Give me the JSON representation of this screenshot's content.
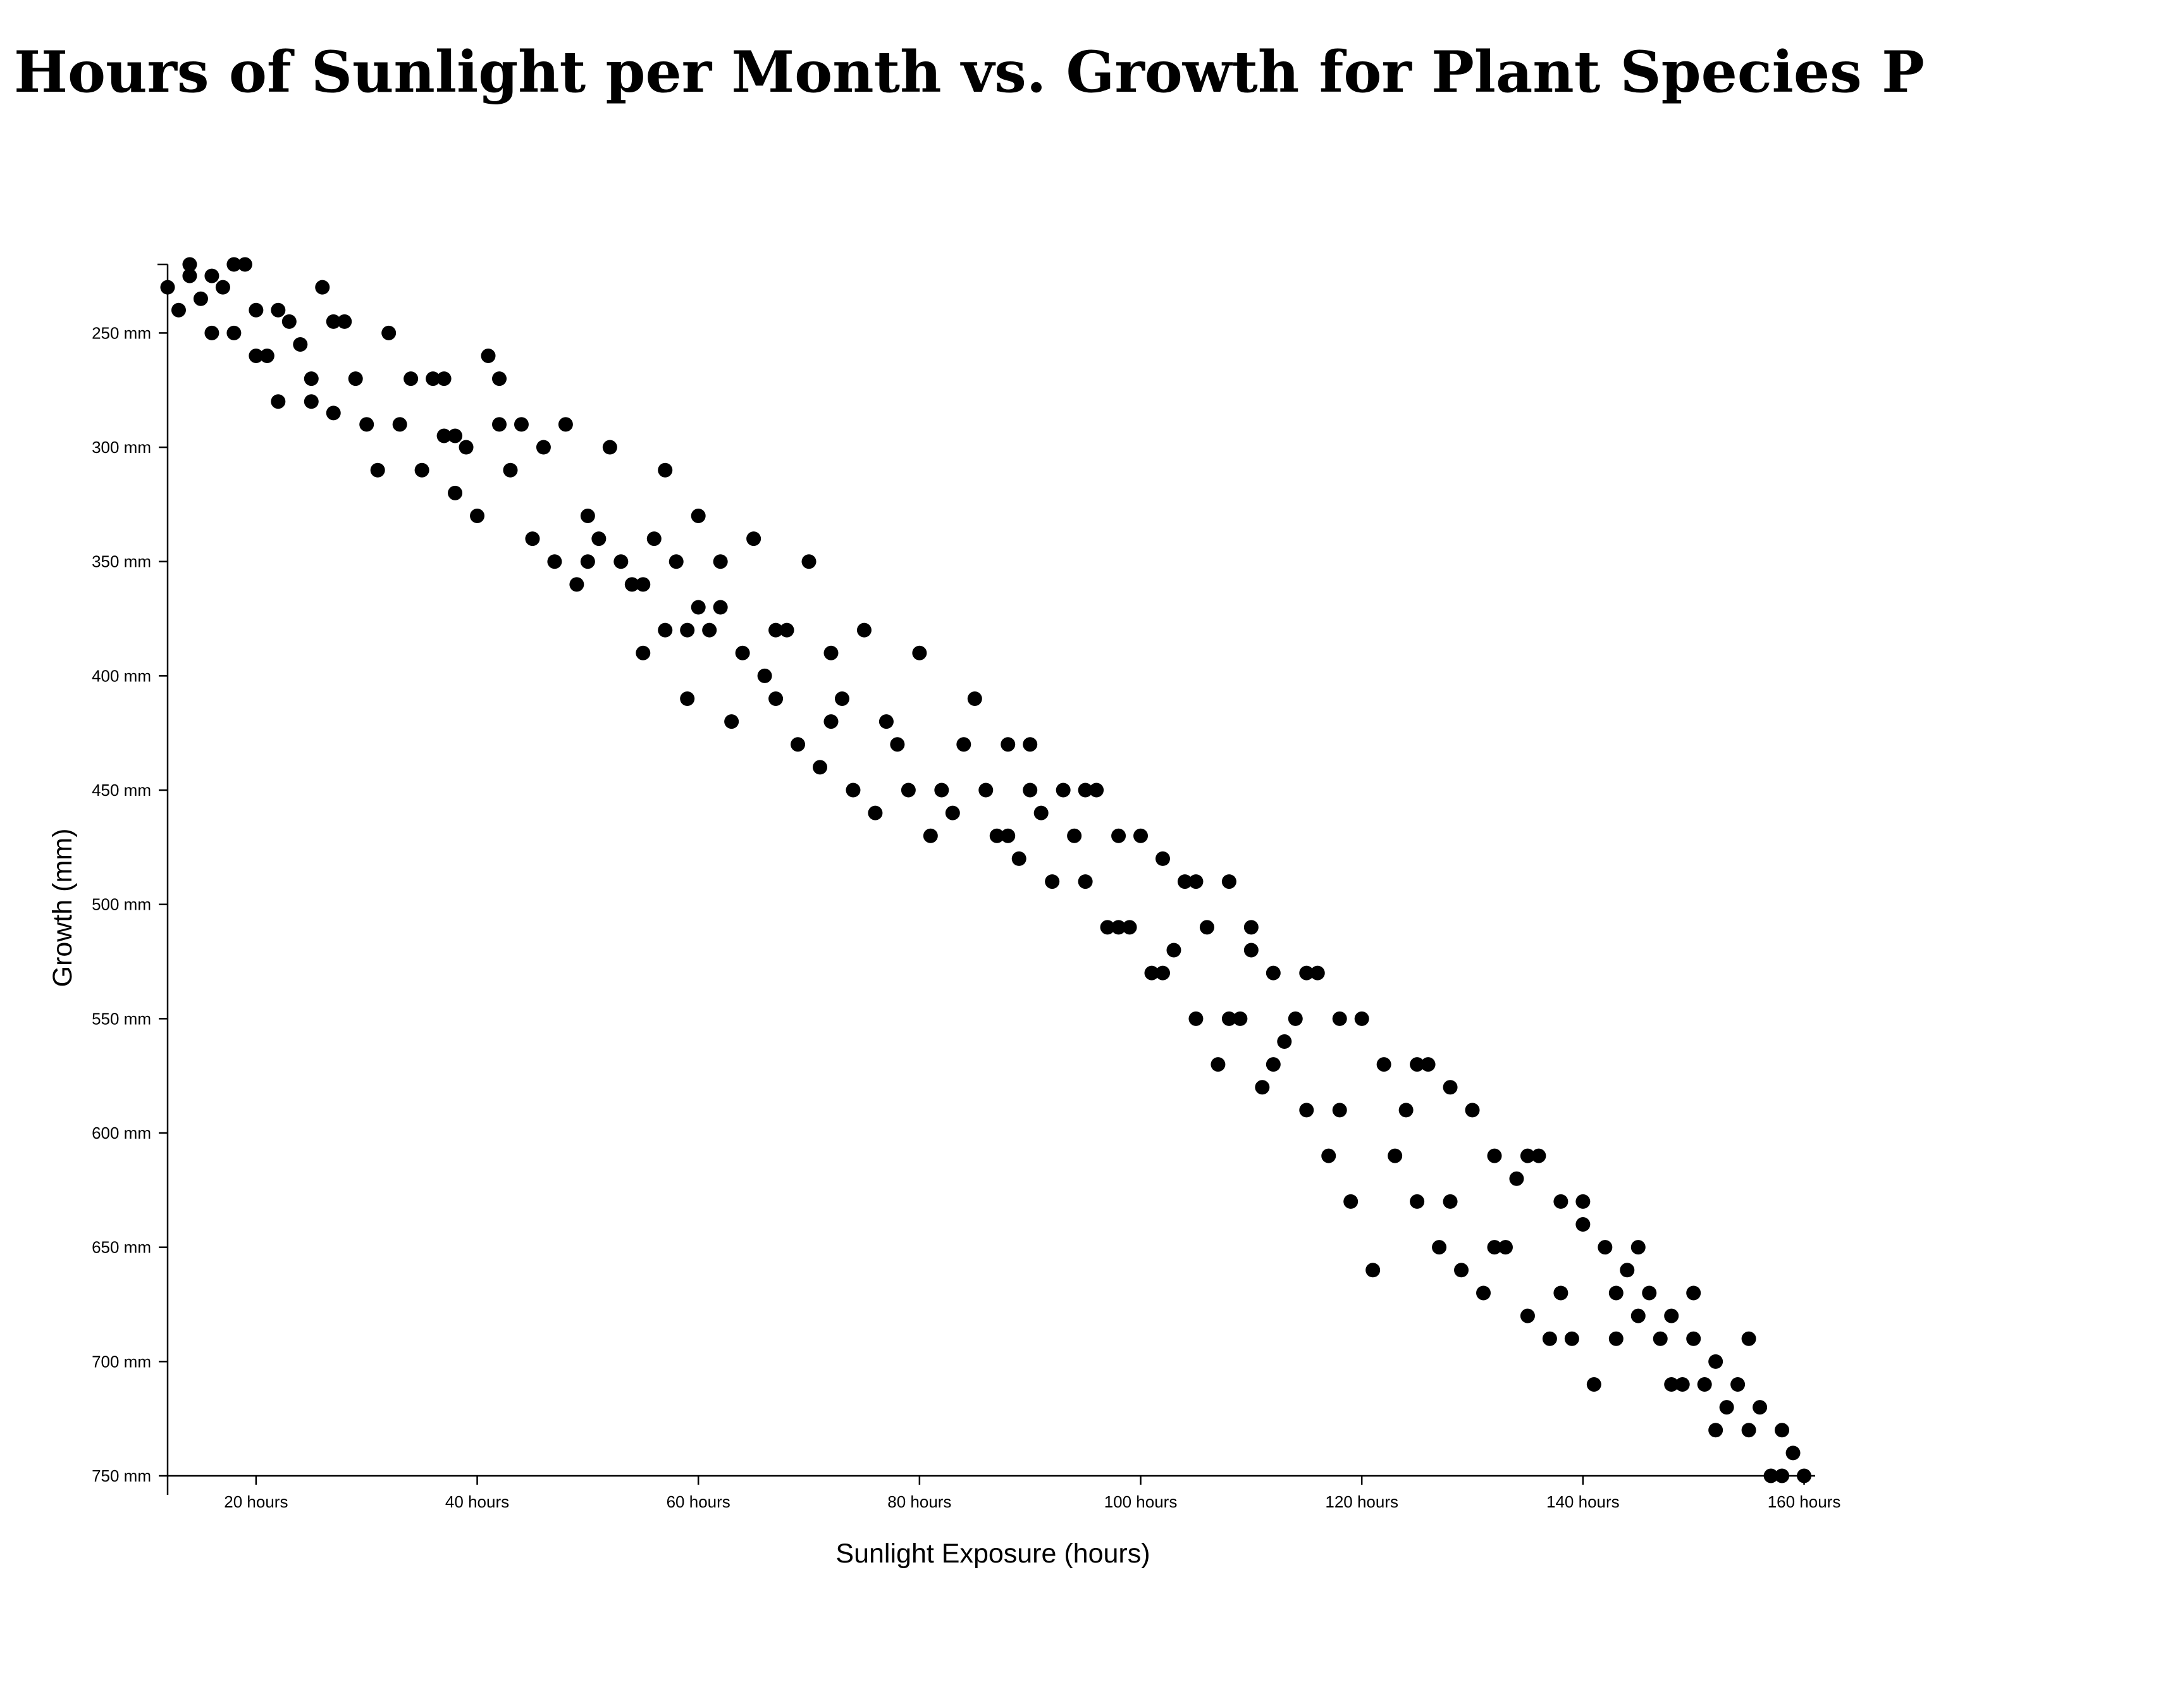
{
  "chart_data": {
    "type": "scatter",
    "title": "Hours of Sunlight per Month vs. Growth for Plant Species P",
    "xlabel": "Sunlight Exposure (hours)",
    "ylabel": "Growth (mm)",
    "xlim": [
      12,
      161
    ],
    "ylim": [
      220,
      750
    ],
    "y_inverted": true,
    "grid": false,
    "legend": "none",
    "point_color": "#000000",
    "x_ticks": [
      {
        "value": 20,
        "label": "20 hours"
      },
      {
        "value": 40,
        "label": "40 hours"
      },
      {
        "value": 60,
        "label": "60 hours"
      },
      {
        "value": 80,
        "label": "80 hours"
      },
      {
        "value": 100,
        "label": "100 hours"
      },
      {
        "value": 120,
        "label": "120 hours"
      },
      {
        "value": 140,
        "label": "140 hours"
      },
      {
        "value": 160,
        "label": "160 hours"
      }
    ],
    "y_ticks": [
      {
        "value": 250,
        "label": "250 mm"
      },
      {
        "value": 300,
        "label": "300 mm"
      },
      {
        "value": 350,
        "label": "350 mm"
      },
      {
        "value": 400,
        "label": "400 mm"
      },
      {
        "value": 450,
        "label": "450 mm"
      },
      {
        "value": 500,
        "label": "500 mm"
      },
      {
        "value": 550,
        "label": "550 mm"
      },
      {
        "value": 600,
        "label": "600 mm"
      },
      {
        "value": 650,
        "label": "650 mm"
      },
      {
        "value": 700,
        "label": "700 mm"
      },
      {
        "value": 750,
        "label": "750 mm"
      }
    ],
    "points": [
      [
        12,
        230
      ],
      [
        13,
        240
      ],
      [
        14,
        220
      ],
      [
        14,
        225
      ],
      [
        15,
        235
      ],
      [
        16,
        225
      ],
      [
        16,
        250
      ],
      [
        17,
        230
      ],
      [
        18,
        220
      ],
      [
        18,
        250
      ],
      [
        19,
        220
      ],
      [
        20,
        240
      ],
      [
        20,
        260
      ],
      [
        21,
        260
      ],
      [
        22,
        240
      ],
      [
        22,
        280
      ],
      [
        23,
        245
      ],
      [
        24,
        255
      ],
      [
        25,
        270
      ],
      [
        25,
        280
      ],
      [
        26,
        230
      ],
      [
        27,
        245
      ],
      [
        27,
        285
      ],
      [
        28,
        245
      ],
      [
        29,
        270
      ],
      [
        30,
        290
      ],
      [
        31,
        310
      ],
      [
        32,
        250
      ],
      [
        33,
        290
      ],
      [
        34,
        270
      ],
      [
        35,
        310
      ],
      [
        36,
        270
      ],
      [
        37,
        270
      ],
      [
        37,
        295
      ],
      [
        38,
        295
      ],
      [
        38,
        320
      ],
      [
        39,
        300
      ],
      [
        40,
        330
      ],
      [
        41,
        260
      ],
      [
        42,
        270
      ],
      [
        42,
        290
      ],
      [
        43,
        310
      ],
      [
        44,
        290
      ],
      [
        45,
        340
      ],
      [
        46,
        300
      ],
      [
        47,
        350
      ],
      [
        48,
        290
      ],
      [
        49,
        360
      ],
      [
        50,
        330
      ],
      [
        50,
        350
      ],
      [
        51,
        340
      ],
      [
        52,
        300
      ],
      [
        53,
        350
      ],
      [
        54,
        360
      ],
      [
        55,
        360
      ],
      [
        55,
        390
      ],
      [
        56,
        340
      ],
      [
        57,
        310
      ],
      [
        57,
        380
      ],
      [
        58,
        350
      ],
      [
        59,
        380
      ],
      [
        59,
        410
      ],
      [
        60,
        330
      ],
      [
        60,
        370
      ],
      [
        61,
        380
      ],
      [
        62,
        350
      ],
      [
        62,
        370
      ],
      [
        63,
        420
      ],
      [
        64,
        390
      ],
      [
        65,
        340
      ],
      [
        66,
        400
      ],
      [
        67,
        380
      ],
      [
        67,
        410
      ],
      [
        68,
        380
      ],
      [
        69,
        430
      ],
      [
        70,
        350
      ],
      [
        71,
        440
      ],
      [
        72,
        390
      ],
      [
        72,
        420
      ],
      [
        73,
        410
      ],
      [
        74,
        450
      ],
      [
        75,
        380
      ],
      [
        76,
        460
      ],
      [
        77,
        420
      ],
      [
        78,
        430
      ],
      [
        79,
        450
      ],
      [
        80,
        390
      ],
      [
        81,
        470
      ],
      [
        82,
        450
      ],
      [
        83,
        460
      ],
      [
        84,
        430
      ],
      [
        85,
        410
      ],
      [
        86,
        450
      ],
      [
        87,
        470
      ],
      [
        88,
        430
      ],
      [
        88,
        470
      ],
      [
        89,
        480
      ],
      [
        90,
        430
      ],
      [
        90,
        450
      ],
      [
        91,
        460
      ],
      [
        92,
        490
      ],
      [
        93,
        450
      ],
      [
        94,
        470
      ],
      [
        95,
        450
      ],
      [
        95,
        490
      ],
      [
        96,
        450
      ],
      [
        97,
        510
      ],
      [
        98,
        470
      ],
      [
        98,
        510
      ],
      [
        99,
        510
      ],
      [
        100,
        470
      ],
      [
        101,
        530
      ],
      [
        102,
        480
      ],
      [
        102,
        530
      ],
      [
        103,
        520
      ],
      [
        104,
        490
      ],
      [
        105,
        490
      ],
      [
        105,
        550
      ],
      [
        106,
        510
      ],
      [
        107,
        570
      ],
      [
        108,
        490
      ],
      [
        108,
        550
      ],
      [
        109,
        550
      ],
      [
        110,
        510
      ],
      [
        110,
        520
      ],
      [
        111,
        580
      ],
      [
        112,
        530
      ],
      [
        112,
        570
      ],
      [
        113,
        560
      ],
      [
        114,
        550
      ],
      [
        115,
        530
      ],
      [
        115,
        590
      ],
      [
        116,
        530
      ],
      [
        117,
        610
      ],
      [
        118,
        550
      ],
      [
        118,
        590
      ],
      [
        119,
        630
      ],
      [
        120,
        550
      ],
      [
        121,
        660
      ],
      [
        122,
        570
      ],
      [
        123,
        610
      ],
      [
        124,
        590
      ],
      [
        125,
        570
      ],
      [
        125,
        630
      ],
      [
        126,
        570
      ],
      [
        127,
        650
      ],
      [
        128,
        580
      ],
      [
        128,
        630
      ],
      [
        129,
        660
      ],
      [
        130,
        590
      ],
      [
        131,
        670
      ],
      [
        132,
        610
      ],
      [
        132,
        650
      ],
      [
        133,
        650
      ],
      [
        134,
        620
      ],
      [
        135,
        610
      ],
      [
        135,
        680
      ],
      [
        136,
        610
      ],
      [
        137,
        690
      ],
      [
        138,
        630
      ],
      [
        138,
        670
      ],
      [
        139,
        690
      ],
      [
        140,
        630
      ],
      [
        140,
        640
      ],
      [
        141,
        710
      ],
      [
        142,
        650
      ],
      [
        143,
        670
      ],
      [
        143,
        690
      ],
      [
        144,
        660
      ],
      [
        145,
        650
      ],
      [
        145,
        680
      ],
      [
        146,
        670
      ],
      [
        147,
        690
      ],
      [
        148,
        680
      ],
      [
        148,
        710
      ],
      [
        149,
        710
      ],
      [
        150,
        670
      ],
      [
        150,
        690
      ],
      [
        151,
        710
      ],
      [
        152,
        700
      ],
      [
        152,
        730
      ],
      [
        153,
        720
      ],
      [
        154,
        710
      ],
      [
        155,
        690
      ],
      [
        155,
        730
      ],
      [
        156,
        720
      ],
      [
        157,
        750
      ],
      [
        158,
        730
      ],
      [
        158,
        750
      ],
      [
        159,
        740
      ],
      [
        160,
        750
      ]
    ]
  }
}
